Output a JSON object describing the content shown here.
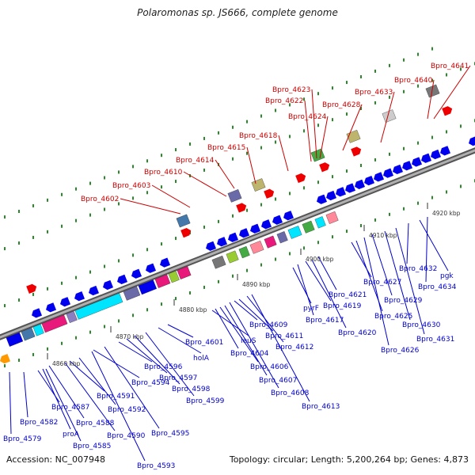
{
  "title": "Polaromonas sp. JS666, complete genome",
  "accession": "Accession: NC_007948",
  "summary": "Topology: circular; Length: 5,200,264 bp; Genes: 4,873",
  "colors": {
    "backbone": "#888888",
    "forward": "#0000ee",
    "upper_label": "#cc0000",
    "lower_label": "#0000cc",
    "tick": "#2a8a2a"
  },
  "axis": {
    "ticks": [
      {
        "label": "4860 kbp",
        "kb": 4860
      },
      {
        "label": "4870 kbp",
        "kb": 4870
      },
      {
        "label": "4880 kbp",
        "kb": 4880
      },
      {
        "label": "4890 kbp",
        "kb": 4890
      },
      {
        "label": "4900 kbp",
        "kb": 4900
      },
      {
        "label": "4910 kbp",
        "kb": 4910
      },
      {
        "label": "4920 kbp",
        "kb": 4920
      }
    ]
  },
  "upper_labels": [
    {
      "text": "Bpro_4602"
    },
    {
      "text": "Bpro_4603"
    },
    {
      "text": "Bpro_4610"
    },
    {
      "text": "Bpro_4614"
    },
    {
      "text": "Bpro_4615"
    },
    {
      "text": "Bpro_4618"
    },
    {
      "text": "Bpro_4622"
    },
    {
      "text": "Bpro_4623"
    },
    {
      "text": "Bpro_4624"
    },
    {
      "text": "Bpro_4628"
    },
    {
      "text": "Bpro_4633"
    },
    {
      "text": "Bpro_4640"
    },
    {
      "text": "Bpro_4641"
    }
  ],
  "lower_labels": [
    {
      "text": "Bpro_4579"
    },
    {
      "text": "Bpro_4582"
    },
    {
      "text": "proA"
    },
    {
      "text": "Bpro_4585"
    },
    {
      "text": "Bpro_4587"
    },
    {
      "text": "Bpro_4588"
    },
    {
      "text": "Bpro_4590"
    },
    {
      "text": "Bpro_4591"
    },
    {
      "text": "Bpro_4592"
    },
    {
      "text": "Bpro_4593"
    },
    {
      "text": "Bpro_4594"
    },
    {
      "text": "Bpro_4595"
    },
    {
      "text": "Bpro_4596"
    },
    {
      "text": "Bpro_4597"
    },
    {
      "text": "Bpro_4598"
    },
    {
      "text": "Bpro_4599"
    },
    {
      "text": "holA"
    },
    {
      "text": "Bpro_4601"
    },
    {
      "text": "leuS"
    },
    {
      "text": "Bpro_4604"
    },
    {
      "text": "Bpro_4606"
    },
    {
      "text": "Bpro_4607"
    },
    {
      "text": "Bpro_4608"
    },
    {
      "text": "Bpro_4609"
    },
    {
      "text": "Bpro_4611"
    },
    {
      "text": "Bpro_4612"
    },
    {
      "text": "Bpro_4613"
    },
    {
      "text": "pyrF"
    },
    {
      "text": "Bpro_4617"
    },
    {
      "text": "Bpro_4619"
    },
    {
      "text": "Bpro_4620"
    },
    {
      "text": "Bpro_4621"
    },
    {
      "text": "Bpro_4625"
    },
    {
      "text": "Bpro_4626"
    },
    {
      "text": "Bpro_4627"
    },
    {
      "text": "Bpro_4629"
    },
    {
      "text": "Bpro_4630"
    },
    {
      "text": "Bpro_4631"
    },
    {
      "text": "Bpro_4632"
    },
    {
      "text": "pgk"
    },
    {
      "text": "Bpro_4634"
    }
  ]
}
